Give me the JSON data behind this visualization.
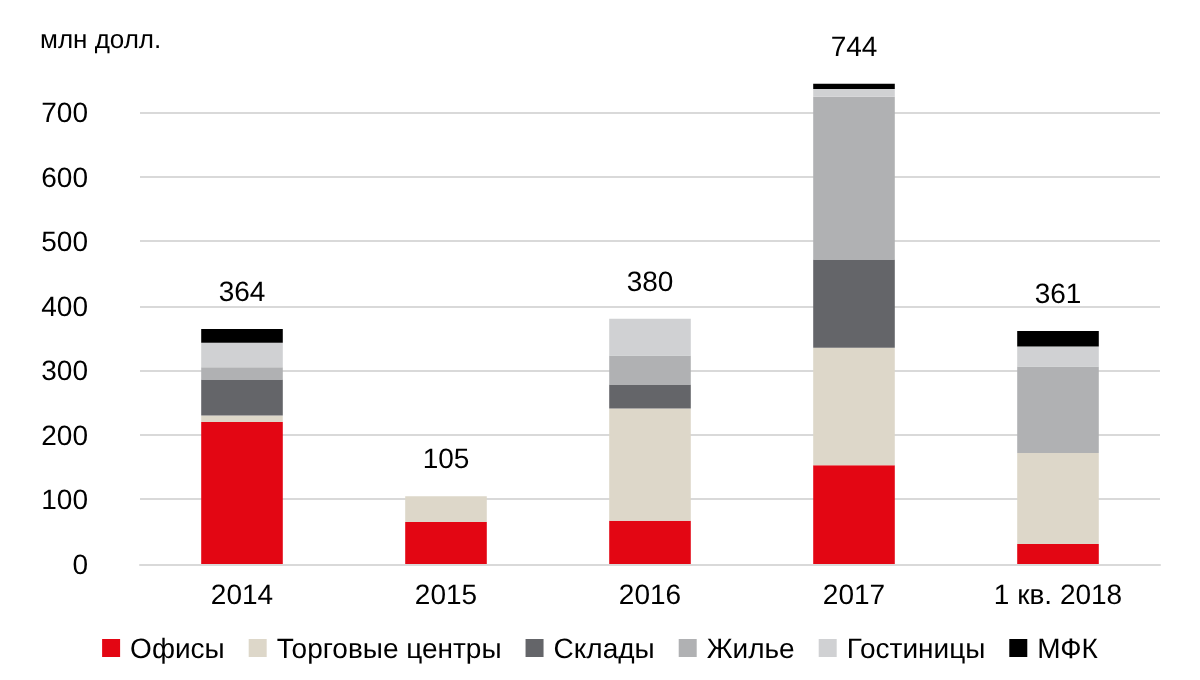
{
  "chart_data": {
    "type": "bar",
    "ylabel": "млн долл.",
    "categories": [
      "2014",
      "2015",
      "2016",
      "2017",
      "1 кв. 2018"
    ],
    "stacked": true,
    "series": [
      {
        "name": "Офисы",
        "color": "#e30613",
        "values": [
          220,
          65,
          67,
          153,
          31
        ]
      },
      {
        "name": "Торговые центры",
        "color": "#ddd7c9",
        "values": [
          10,
          40,
          174,
          182,
          141
        ]
      },
      {
        "name": "Склады",
        "color": "#646569",
        "values": [
          56,
          0,
          37,
          137,
          0
        ]
      },
      {
        "name": "Жилье",
        "color": "#b0b1b3",
        "values": [
          19,
          0,
          45,
          252,
          134
        ]
      },
      {
        "name": "Гостиницы",
        "color": "#d0d1d3",
        "values": [
          38,
          0,
          57,
          12,
          31
        ]
      },
      {
        "name": "МФК",
        "color": "#000000",
        "values": [
          21,
          0,
          0,
          8,
          24
        ]
      }
    ],
    "totals": [
      "364",
      "105",
      "380",
      "744",
      "361"
    ],
    "ylim": [
      0,
      750
    ],
    "yticks": [
      0,
      100,
      200,
      300,
      400,
      500,
      600,
      700
    ],
    "grid": "y",
    "legend": "bottom"
  }
}
